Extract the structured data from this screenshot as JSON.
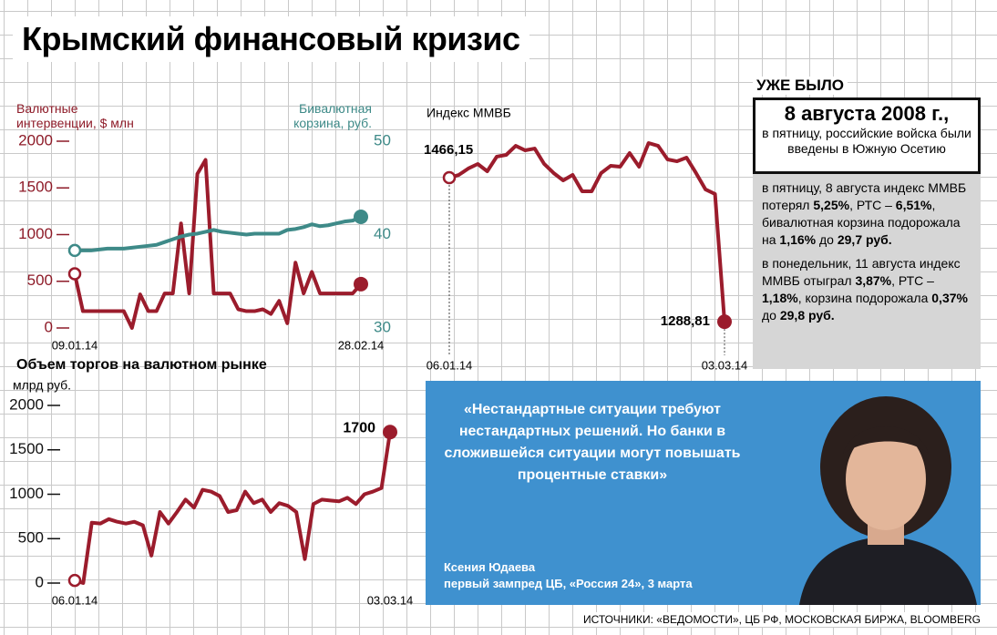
{
  "title": "Крымский финансовый кризис",
  "chart_data": [
    {
      "type": "line",
      "categories": [
        "09.01.14",
        null,
        null,
        null,
        null,
        null,
        null,
        null,
        null,
        null,
        null,
        null,
        null,
        null,
        null,
        null,
        null,
        null,
        null,
        null,
        null,
        null,
        null,
        null,
        null,
        null,
        null,
        null,
        null,
        null,
        null,
        null,
        null,
        null,
        null,
        "28.02.14"
      ],
      "series": [
        {
          "name": "Валютные интервенции, $ млн",
          "color": "#9b1c2c",
          "values": [
            580,
            180,
            180,
            180,
            180,
            180,
            180,
            0,
            360,
            180,
            180,
            370,
            370,
            1120,
            370,
            1650,
            1800,
            370,
            370,
            370,
            200,
            180,
            180,
            200,
            150,
            290,
            50,
            700,
            370,
            600,
            370,
            370,
            370,
            370,
            370,
            470
          ]
        },
        {
          "name": "Бивалютная корзина, руб.",
          "color": "#3e8a88",
          "axis": "y2",
          "values": [
            38.3,
            38.3,
            38.3,
            38.4,
            38.5,
            38.5,
            38.5,
            38.6,
            38.7,
            38.8,
            38.9,
            39.2,
            39.5,
            39.8,
            40.0,
            40.1,
            40.3,
            40.5,
            40.3,
            40.2,
            40.1,
            40.0,
            40.1,
            40.1,
            40.1,
            40.1,
            40.5,
            40.6,
            40.8,
            41.1,
            40.9,
            41.0,
            41.2,
            41.4,
            41.5,
            41.9
          ]
        }
      ],
      "ylim": [
        0,
        2000
      ],
      "yticks": [
        0,
        500,
        1000,
        1500,
        2000
      ],
      "y2lim": [
        30,
        50
      ],
      "y2ticks": [
        30,
        40,
        50
      ]
    },
    {
      "type": "line",
      "title": "Индекс ММВБ",
      "color": "#9b1c2c",
      "categories": [
        "06.01.14",
        null,
        null,
        null,
        null,
        null,
        null,
        null,
        null,
        null,
        null,
        null,
        null,
        null,
        null,
        null,
        null,
        null,
        null,
        null,
        null,
        null,
        null,
        null,
        null,
        null,
        null,
        null,
        null,
        "03.03.14"
      ],
      "values": [
        1466.15,
        1469.5,
        1477.4,
        1483,
        1474,
        1492,
        1494.2,
        1505.4,
        1499.8,
        1502,
        1483,
        1471.8,
        1462.8,
        1469.5,
        1449.3,
        1449.3,
        1471.8,
        1480.7,
        1479.6,
        1496.4,
        1479.6,
        1508.8,
        1505.4,
        1488.6,
        1486.3,
        1490.8,
        1471.8,
        1451.6,
        1446,
        1288.81
      ],
      "value_labels": [
        "1466,15",
        null,
        null,
        null,
        null,
        null,
        null,
        null,
        null,
        null,
        null,
        null,
        null,
        null,
        null,
        null,
        null,
        null,
        null,
        null,
        null,
        null,
        null,
        null,
        null,
        null,
        null,
        null,
        null,
        "1288,81"
      ],
      "ylim": [
        1280,
        1520
      ]
    },
    {
      "type": "line",
      "title": "Объем торгов на валютном рынке",
      "y_label": "млрд руб.",
      "color": "#9b1c2c",
      "categories": [
        "06.01.14",
        null,
        null,
        null,
        null,
        null,
        null,
        null,
        null,
        null,
        null,
        null,
        null,
        null,
        null,
        null,
        null,
        null,
        null,
        null,
        null,
        null,
        null,
        null,
        null,
        null,
        null,
        null,
        null,
        null,
        null,
        null,
        null,
        null,
        null,
        null,
        null,
        "03.03.14"
      ],
      "values": [
        30,
        0,
        680,
        670,
        720,
        690,
        670,
        690,
        650,
        310,
        800,
        670,
        800,
        940,
        850,
        1050,
        1030,
        980,
        800,
        820,
        1030,
        900,
        940,
        800,
        900,
        870,
        800,
        270,
        890,
        940,
        930,
        920,
        960,
        890,
        1000,
        1030,
        1070,
        1700
      ],
      "ylim": [
        0,
        2000
      ],
      "yticks": [
        0,
        500,
        1000,
        1500,
        2000
      ]
    }
  ],
  "sidebar": {
    "heading": "УЖЕ БЫЛО",
    "date": "8 августа 2008 г.,",
    "event": "в пятницу, российские войска были введены в Южную Осетию",
    "paragraphs": [
      [
        "в пятницу, 8 августа индекс ММВБ потерял ",
        "5,25%",
        ", РТС – ",
        "6,51%",
        ", бивалютная корзина подорожала на ",
        "1,16%",
        " до ",
        "29,7 руб."
      ],
      [
        "в понедельник, 11 августа индекс ММВБ отыграл ",
        "3,87%",
        ", РТС – ",
        "1,18%",
        ", корзина подорожала ",
        "0,37%",
        " до ",
        "29,8 руб."
      ]
    ]
  },
  "quote": {
    "text": "«Нестандартные ситуации требуют нестандартных решений. Но банки в сложившейся ситуации могут повышать процентные ставки»",
    "author": "Ксения Юдаева",
    "position": "первый зампред ЦБ, «Россия 24», 3 марта"
  },
  "source": "ИСТОЧНИКИ: «ВЕДОМОСТИ», ЦБ РФ, МОСКОВСКАЯ БИРЖА, BLOOMBERG"
}
